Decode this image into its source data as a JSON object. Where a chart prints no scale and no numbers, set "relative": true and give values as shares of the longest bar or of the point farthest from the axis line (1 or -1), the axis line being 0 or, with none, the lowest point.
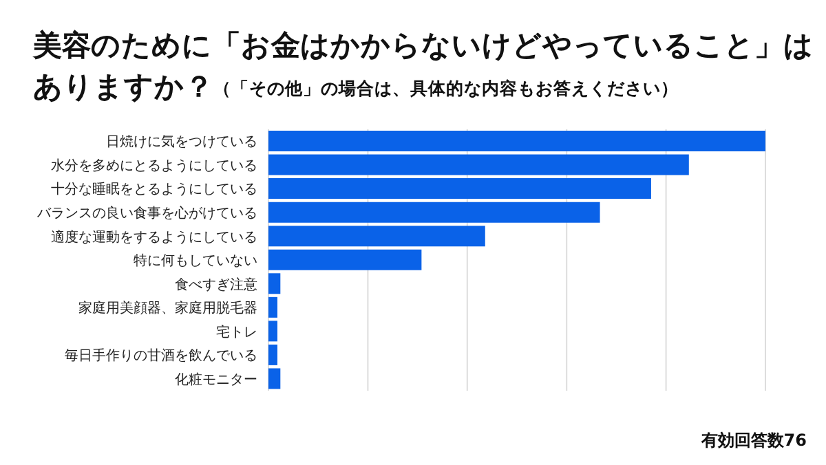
{
  "chart_data": {
    "type": "bar",
    "orientation": "horizontal",
    "relative": true,
    "grid": "x",
    "title": "美容のために「お金はかからないけどやっていること」はありますか？",
    "subtitle": "（「その他」の場合は、具体的な内容もお答えください）",
    "categories": [
      "日焼けに気をつけている",
      "水分を多めにとるようにしている",
      "十分な睡眠をとるようにしている",
      "バランスの良い食事を心がけている",
      "適度な運動をするようにしている",
      "特に何もしていない",
      "食べすぎ注意",
      "家庭用美顔器、家庭用脱毛器",
      "宅トレ",
      "毎日手作りの甘酒を飲んでいる",
      "化粧モニター"
    ],
    "values": [
      1,
      0.846,
      0.77,
      0.667,
      0.436,
      0.308,
      0.024,
      0.018,
      0.018,
      0.018,
      0.024
    ],
    "color": "#0a62e8",
    "annotations": [
      "有効回答数76"
    ]
  }
}
